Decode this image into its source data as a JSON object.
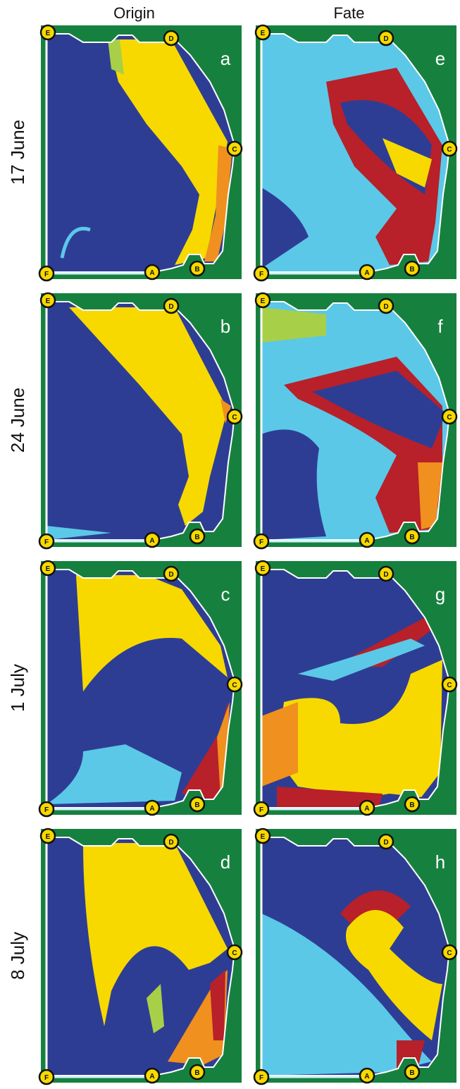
{
  "columns": [
    "Origin",
    "Fate"
  ],
  "rows": [
    {
      "label": "17 June",
      "panels": [
        {
          "letter": "a"
        },
        {
          "letter": "e"
        }
      ]
    },
    {
      "label": "24 June",
      "panels": [
        {
          "letter": "b"
        },
        {
          "letter": "f"
        }
      ]
    },
    {
      "label": "1 July",
      "panels": [
        {
          "letter": "c"
        },
        {
          "letter": "g"
        }
      ]
    },
    {
      "label": "8 July",
      "panels": [
        {
          "letter": "d"
        },
        {
          "letter": "h"
        }
      ]
    }
  ],
  "points": [
    "A",
    "B",
    "C",
    "D",
    "E",
    "F"
  ]
}
